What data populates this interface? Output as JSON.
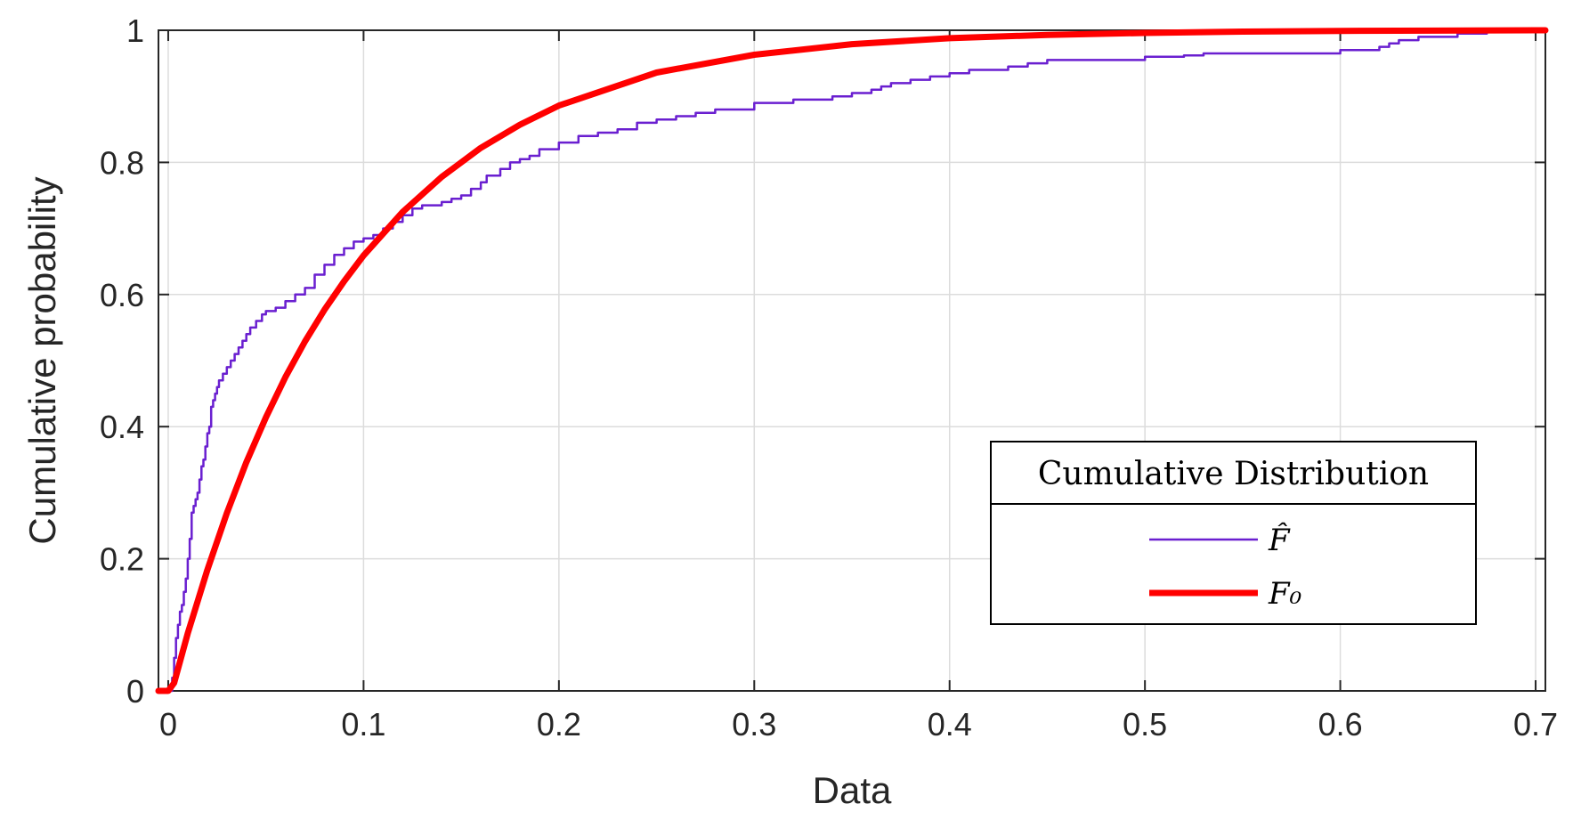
{
  "chart_data": {
    "type": "line",
    "title": "",
    "xlabel": "Data",
    "ylabel": "Cumulative probability",
    "xlim": [
      -0.005,
      0.705
    ],
    "ylim": [
      0,
      1
    ],
    "xticks": [
      0,
      0.1,
      0.2,
      0.3,
      0.4,
      0.5,
      0.6,
      0.7
    ],
    "xtick_labels": [
      "0",
      "0.1",
      "0.2",
      "0.3",
      "0.4",
      "0.5",
      "0.6",
      "0.7"
    ],
    "yticks": [
      0,
      0.2,
      0.4,
      0.6,
      0.8,
      1
    ],
    "ytick_labels": [
      "0",
      "0.2",
      "0.4",
      "0.6",
      "0.8",
      "1"
    ],
    "grid": true,
    "legend": {
      "title": "Cumulative Distribution",
      "placement": "lower-right",
      "entries": [
        "F̂",
        "F₀"
      ]
    },
    "series": [
      {
        "name": "F̂",
        "color": "#6a1fd0",
        "style": "step",
        "x": [
          -0.005,
          0.002,
          0.003,
          0.004,
          0.005,
          0.006,
          0.007,
          0.008,
          0.009,
          0.01,
          0.011,
          0.012,
          0.013,
          0.014,
          0.015,
          0.016,
          0.017,
          0.018,
          0.019,
          0.02,
          0.021,
          0.022,
          0.023,
          0.024,
          0.025,
          0.026,
          0.028,
          0.03,
          0.032,
          0.034,
          0.036,
          0.038,
          0.04,
          0.042,
          0.045,
          0.048,
          0.05,
          0.055,
          0.06,
          0.065,
          0.07,
          0.075,
          0.08,
          0.085,
          0.09,
          0.095,
          0.1,
          0.105,
          0.11,
          0.115,
          0.12,
          0.125,
          0.13,
          0.14,
          0.145,
          0.15,
          0.155,
          0.16,
          0.163,
          0.17,
          0.175,
          0.18,
          0.185,
          0.19,
          0.2,
          0.21,
          0.22,
          0.23,
          0.24,
          0.25,
          0.26,
          0.27,
          0.28,
          0.3,
          0.32,
          0.34,
          0.35,
          0.36,
          0.365,
          0.37,
          0.38,
          0.39,
          0.4,
          0.41,
          0.43,
          0.44,
          0.45,
          0.5,
          0.52,
          0.53,
          0.6,
          0.62,
          0.625,
          0.63,
          0.64,
          0.66,
          0.675
        ],
        "y": [
          0,
          0.02,
          0.05,
          0.08,
          0.1,
          0.12,
          0.13,
          0.15,
          0.17,
          0.2,
          0.23,
          0.27,
          0.28,
          0.29,
          0.3,
          0.32,
          0.34,
          0.35,
          0.37,
          0.39,
          0.4,
          0.43,
          0.44,
          0.45,
          0.46,
          0.47,
          0.48,
          0.49,
          0.5,
          0.51,
          0.52,
          0.53,
          0.54,
          0.55,
          0.56,
          0.57,
          0.575,
          0.58,
          0.59,
          0.6,
          0.61,
          0.63,
          0.645,
          0.66,
          0.67,
          0.68,
          0.685,
          0.69,
          0.7,
          0.71,
          0.72,
          0.73,
          0.735,
          0.74,
          0.745,
          0.75,
          0.76,
          0.77,
          0.78,
          0.79,
          0.8,
          0.805,
          0.81,
          0.82,
          0.83,
          0.84,
          0.845,
          0.85,
          0.86,
          0.865,
          0.87,
          0.875,
          0.88,
          0.89,
          0.895,
          0.9,
          0.905,
          0.91,
          0.915,
          0.92,
          0.925,
          0.93,
          0.935,
          0.94,
          0.945,
          0.95,
          0.955,
          0.96,
          0.962,
          0.965,
          0.97,
          0.975,
          0.98,
          0.985,
          0.99,
          0.995,
          0.995
        ]
      },
      {
        "name": "F₀",
        "color": "#ff0000",
        "style": "line",
        "x": [
          -0.005,
          0.0,
          0.003,
          0.01,
          0.02,
          0.03,
          0.04,
          0.05,
          0.06,
          0.07,
          0.08,
          0.09,
          0.1,
          0.12,
          0.14,
          0.16,
          0.18,
          0.2,
          0.25,
          0.3,
          0.35,
          0.4,
          0.45,
          0.5,
          0.55,
          0.6,
          0.65,
          0.7,
          0.705
        ],
        "y": [
          0,
          0,
          0.012,
          0.087,
          0.183,
          0.269,
          0.346,
          0.414,
          0.475,
          0.529,
          0.577,
          0.62,
          0.659,
          0.725,
          0.778,
          0.822,
          0.857,
          0.886,
          0.936,
          0.963,
          0.979,
          0.988,
          0.993,
          0.996,
          0.998,
          0.999,
          0.9995,
          1.0,
          1.0
        ]
      }
    ]
  }
}
